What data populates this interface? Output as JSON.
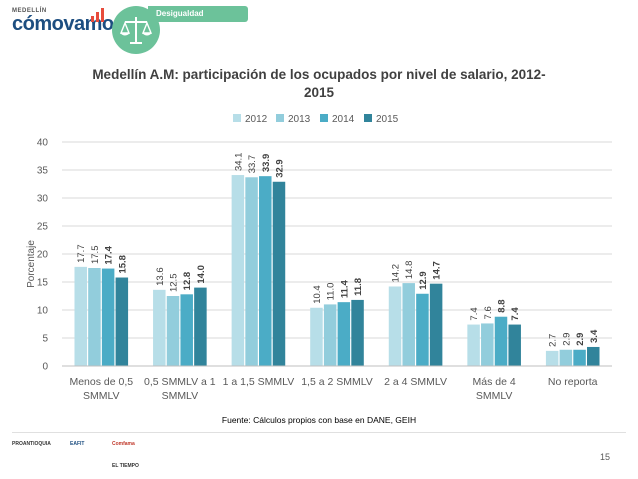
{
  "header": {
    "brand_top": "MEDELLÍN",
    "brand_name": "cómovamos",
    "section_tag": "Desigualdad"
  },
  "chart_data": {
    "type": "bar",
    "title_line1": "Medellín A.M: participación de los ocupados por nivel de salario, 2012-",
    "title_line2": "2015",
    "ylabel": "Porcentaje",
    "ylim": [
      0,
      40
    ],
    "yticks": [
      0,
      5,
      10,
      15,
      20,
      25,
      30,
      35,
      40
    ],
    "legend_position": "top-center",
    "categories": [
      [
        "Menos de 0,5",
        "SMMLV"
      ],
      [
        "0,5 SMMLV a 1",
        "SMMLV"
      ],
      [
        "1 a 1,5 SMMLV"
      ],
      [
        "1,5 a 2 SMMLV"
      ],
      [
        "2 a 4 SMMLV"
      ],
      [
        "Más de 4",
        "SMMLV"
      ],
      [
        "No reporta"
      ]
    ],
    "series": [
      {
        "name": "2012",
        "color": "#b7dee8",
        "bold": false,
        "labels": [
          "17.7",
          "13.6",
          "34.1",
          "10.4",
          "14.2",
          "7.4",
          "2.7"
        ],
        "values": [
          17.7,
          13.6,
          34.1,
          10.4,
          14.2,
          7.4,
          2.7
        ]
      },
      {
        "name": "2013",
        "color": "#92cddc",
        "bold": false,
        "labels": [
          "17.5",
          "12.5",
          "33.7",
          "11.0",
          "14.8",
          "7.6",
          "2.9"
        ],
        "values": [
          17.5,
          12.5,
          33.7,
          11.0,
          14.8,
          7.6,
          2.9
        ]
      },
      {
        "name": "2014",
        "color": "#4bacc6",
        "bold": true,
        "labels": [
          "17.4",
          "12.8",
          "33.9",
          "11.4",
          "12.9",
          "8.8",
          "2.9"
        ],
        "values": [
          17.4,
          12.8,
          33.9,
          11.4,
          12.9,
          8.8,
          2.9
        ]
      },
      {
        "name": "2015",
        "color": "#31849b",
        "bold": true,
        "labels": [
          "15.8",
          "14.0",
          "32.9",
          "11.8",
          "14.7",
          "7.4",
          "3.4"
        ],
        "values": [
          15.8,
          14.0,
          32.9,
          11.8,
          14.7,
          7.4,
          3.4
        ]
      }
    ],
    "source": "Fuente: Cálculos propios con base en DANE, GEIH"
  },
  "footer": {
    "page_number": "15",
    "logos": [
      "PROANTIOQUIA",
      "EAFIT",
      "Comfama",
      "EL TIEMPO"
    ]
  }
}
